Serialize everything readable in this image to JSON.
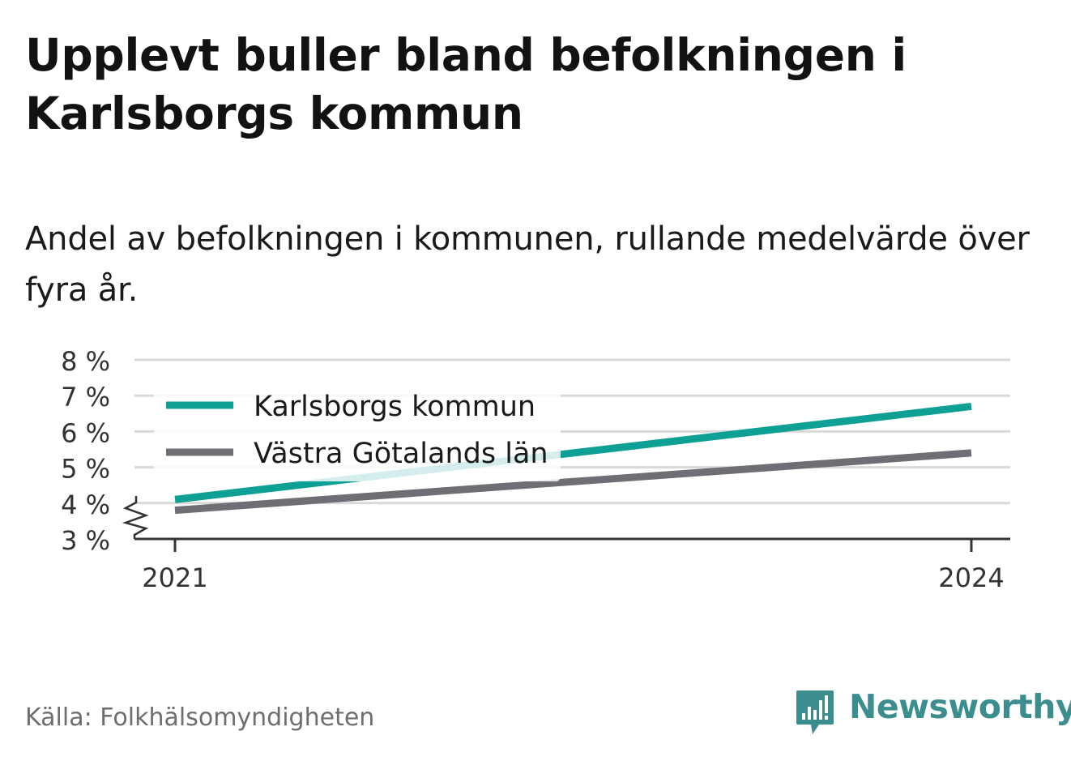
{
  "header": {
    "title": "Upplevt buller bland befolkningen i Karlsborgs kommun",
    "subtitle": "Andel av befolkningen i kommunen, rullande medelvärde över fyra år."
  },
  "footer": {
    "source": "Källa: Folkhälsomyndigheten",
    "brand": "Newsworthy"
  },
  "colors": {
    "karlsborg": "#0e9f95",
    "vastra_gotaland": "#6f6e75",
    "grid": "#d9d9d9",
    "axis": "#333333",
    "brand": "#3b8d8e"
  },
  "chart_data": {
    "type": "line",
    "x": [
      2021,
      2024
    ],
    "x_tick_labels": [
      "2021",
      "2024"
    ],
    "y_ticks": [
      3,
      4,
      5,
      6,
      7,
      8
    ],
    "y_tick_labels": [
      "3 %",
      "4 %",
      "5 %",
      "6 %",
      "7 %",
      "8 %"
    ],
    "ylim": [
      3,
      8
    ],
    "y_axis_break": true,
    "grid": true,
    "legend_position": "top-left",
    "series": [
      {
        "name": "Karlsborgs kommun",
        "color": "#0e9f95",
        "values": [
          4.1,
          6.7
        ]
      },
      {
        "name": "Västra Götalands län",
        "color": "#6f6e75",
        "values": [
          3.8,
          5.4
        ]
      }
    ]
  }
}
